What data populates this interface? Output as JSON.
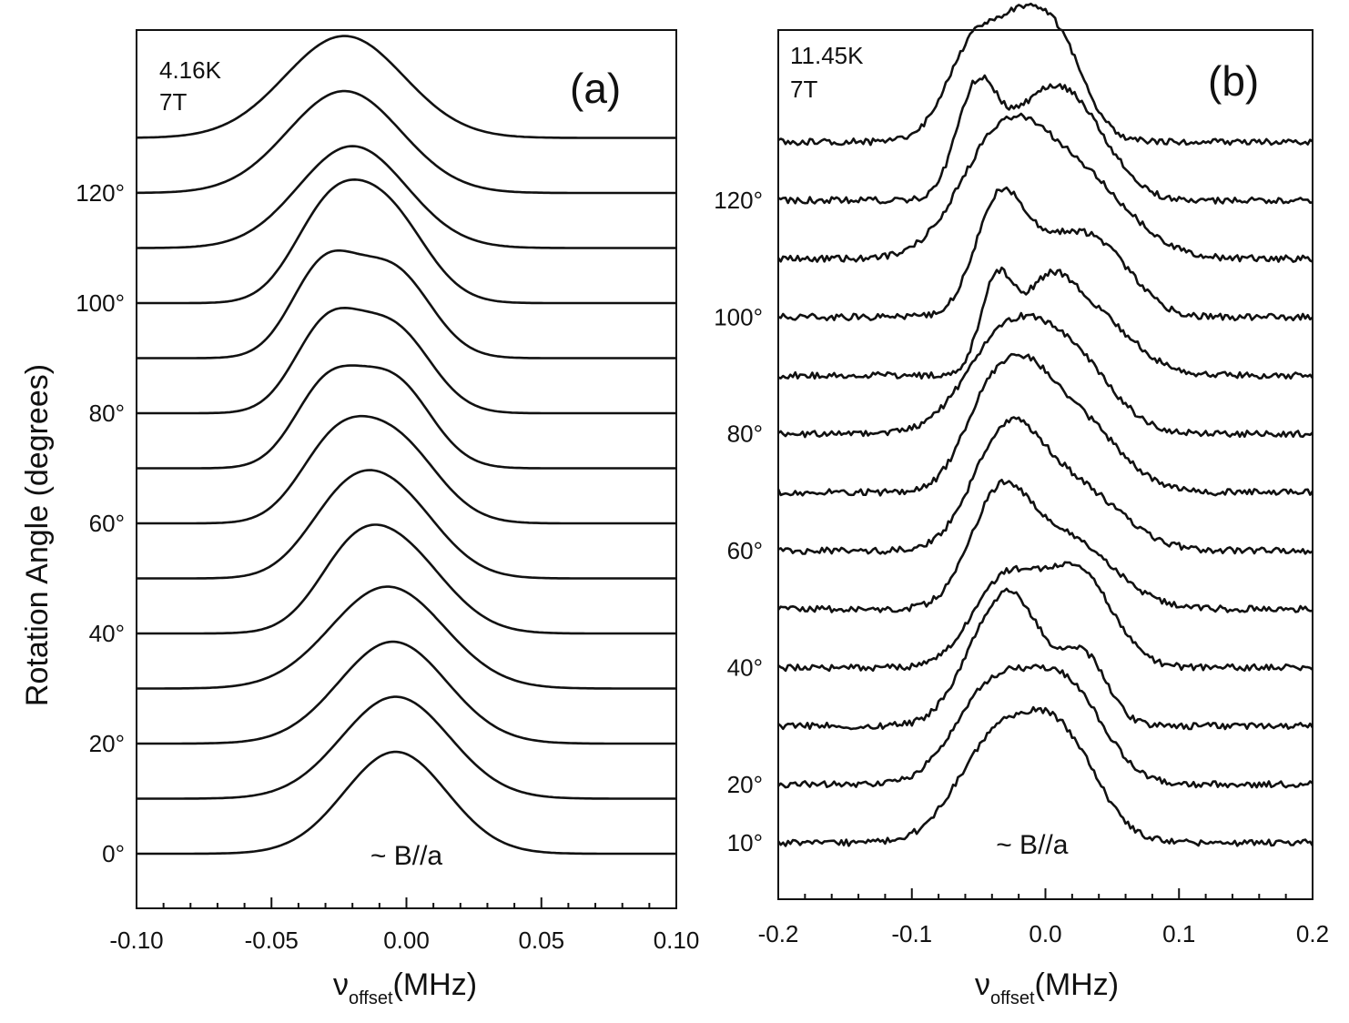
{
  "y_axis_title": "Rotation Angle (degrees)",
  "chart_data": [
    {
      "panel": "(a)",
      "type": "line",
      "conditions": [
        "4.16K",
        "7T"
      ],
      "xlabel": {
        "symbol": "ν",
        "subscript": "offset",
        "unit": "(MHz)"
      },
      "xlim": [
        -0.1,
        0.1
      ],
      "x_ticks": [
        -0.1,
        -0.05,
        0.0,
        0.05,
        0.1
      ],
      "x_tick_labels": [
        "-0.10",
        "-0.05",
        "0.00",
        "0.05",
        "0.10"
      ],
      "ylim": [
        -10,
        145
      ],
      "angle_labels": [
        {
          "angle": 0,
          "text": "0°"
        },
        {
          "angle": 20,
          "text": "20°"
        },
        {
          "angle": 40,
          "text": "40°"
        },
        {
          "angle": 60,
          "text": "60°"
        },
        {
          "angle": 80,
          "text": "80°"
        },
        {
          "angle": 100,
          "text": "100°"
        },
        {
          "angle": 120,
          "text": "120°"
        }
      ],
      "annotation": {
        "text": "~ B//a",
        "x": 0.0,
        "angle": 0
      },
      "peak_height_deg": 18.5,
      "series": [
        {
          "name": "0°",
          "baseline": 0,
          "peaks": [
            {
              "center": -0.004,
              "width": 0.019,
              "amp": 1.0
            }
          ]
        },
        {
          "name": "10°",
          "baseline": 10,
          "peaks": [
            {
              "center": -0.004,
              "width": 0.02,
              "amp": 1.0
            }
          ]
        },
        {
          "name": "20°",
          "baseline": 20,
          "peaks": [
            {
              "center": -0.005,
              "width": 0.02,
              "amp": 1.0
            }
          ]
        },
        {
          "name": "30°",
          "baseline": 30,
          "peaks": [
            {
              "center": -0.007,
              "width": 0.021,
              "amp": 1.0
            }
          ]
        },
        {
          "name": "40°",
          "baseline": 40,
          "peaks": [
            {
              "center": -0.004,
              "width": 0.018,
              "amp": 0.85
            },
            {
              "center": -0.022,
              "width": 0.013,
              "amp": 0.4
            }
          ]
        },
        {
          "name": "50°",
          "baseline": 50,
          "peaks": [
            {
              "center": -0.005,
              "width": 0.017,
              "amp": 0.8
            },
            {
              "center": -0.025,
              "width": 0.014,
              "amp": 0.5
            }
          ]
        },
        {
          "name": "60°",
          "baseline": 60,
          "peaks": [
            {
              "center": -0.005,
              "width": 0.016,
              "amp": 0.82
            },
            {
              "center": -0.028,
              "width": 0.013,
              "amp": 0.62
            }
          ]
        },
        {
          "name": "70°",
          "baseline": 70,
          "peaks": [
            {
              "center": -0.005,
              "width": 0.014,
              "amp": 0.85
            },
            {
              "center": -0.03,
              "width": 0.012,
              "amp": 0.75
            }
          ]
        },
        {
          "name": "80°",
          "baseline": 80,
          "peaks": [
            {
              "center": -0.005,
              "width": 0.014,
              "amp": 0.82
            },
            {
              "center": -0.03,
              "width": 0.012,
              "amp": 0.8
            }
          ]
        },
        {
          "name": "90°",
          "baseline": 90,
          "peaks": [
            {
              "center": -0.005,
              "width": 0.014,
              "amp": 0.85
            },
            {
              "center": -0.031,
              "width": 0.012,
              "amp": 0.85
            }
          ]
        },
        {
          "name": "100°",
          "baseline": 100,
          "peaks": [
            {
              "center": -0.008,
              "width": 0.015,
              "amp": 0.9
            },
            {
              "center": -0.03,
              "width": 0.013,
              "amp": 0.75
            }
          ]
        },
        {
          "name": "110°",
          "baseline": 110,
          "peaks": [
            {
              "center": -0.02,
              "width": 0.02,
              "amp": 1.0
            }
          ]
        },
        {
          "name": "120°",
          "baseline": 120,
          "peaks": [
            {
              "center": -0.023,
              "width": 0.021,
              "amp": 1.0
            }
          ]
        },
        {
          "name": "130°",
          "baseline": 130,
          "peaks": [
            {
              "center": -0.023,
              "width": 0.022,
              "amp": 1.0
            }
          ]
        }
      ]
    },
    {
      "panel": "(b)",
      "type": "line",
      "conditions": [
        "11.45K",
        "7T"
      ],
      "xlabel": {
        "symbol": "ν",
        "subscript": "offset",
        "unit": "(MHz)"
      },
      "xlim": [
        -0.2,
        0.2
      ],
      "x_ticks": [
        -0.2,
        -0.1,
        0.0,
        0.1,
        0.2
      ],
      "x_tick_labels": [
        "-0.2",
        "-0.1",
        "0.0",
        "0.1",
        "0.2"
      ],
      "ylim": [
        0,
        148
      ],
      "angle_labels": [
        {
          "angle": 10,
          "text": "10°"
        },
        {
          "angle": 20,
          "text": "20°"
        },
        {
          "angle": 40,
          "text": "40°"
        },
        {
          "angle": 60,
          "text": "60°"
        },
        {
          "angle": 80,
          "text": "80°"
        },
        {
          "angle": 100,
          "text": "100°"
        },
        {
          "angle": 120,
          "text": "120°"
        }
      ],
      "annotation": {
        "text": "~ B//a",
        "x": -0.01,
        "angle": 10
      },
      "peak_height_deg": 20,
      "noise_amp": 0.045,
      "series": [
        {
          "name": "10°",
          "baseline": 10,
          "peaks": [
            {
              "center": -0.04,
              "width": 0.028,
              "amp": 0.78
            },
            {
              "center": 0.01,
              "width": 0.028,
              "amp": 0.9
            }
          ]
        },
        {
          "name": "20°",
          "baseline": 20,
          "peaks": [
            {
              "center": -0.04,
              "width": 0.028,
              "amp": 0.8
            },
            {
              "center": 0.015,
              "width": 0.028,
              "amp": 0.82
            }
          ]
        },
        {
          "name": "30°",
          "baseline": 30,
          "peaks": [
            {
              "center": -0.045,
              "width": 0.022,
              "amp": 0.65
            },
            {
              "center": -0.018,
              "width": 0.02,
              "amp": 0.75
            },
            {
              "center": 0.028,
              "width": 0.018,
              "amp": 0.6
            }
          ]
        },
        {
          "name": "40°",
          "baseline": 40,
          "peaks": [
            {
              "center": -0.03,
              "width": 0.025,
              "amp": 0.75
            },
            {
              "center": 0.025,
              "width": 0.025,
              "amp": 0.8
            }
          ]
        },
        {
          "name": "50°",
          "baseline": 50,
          "peaks": [
            {
              "center": -0.035,
              "width": 0.022,
              "amp": 0.85
            },
            {
              "center": 0.015,
              "width": 0.035,
              "amp": 0.6
            }
          ]
        },
        {
          "name": "60°",
          "baseline": 60,
          "peaks": [
            {
              "center": -0.03,
              "width": 0.025,
              "amp": 0.9
            },
            {
              "center": 0.02,
              "width": 0.035,
              "amp": 0.55
            }
          ]
        },
        {
          "name": "70°",
          "baseline": 70,
          "peaks": [
            {
              "center": -0.045,
              "width": 0.02,
              "amp": 0.6
            },
            {
              "center": -0.015,
              "width": 0.022,
              "amp": 0.72
            },
            {
              "center": 0.025,
              "width": 0.03,
              "amp": 0.6
            }
          ]
        },
        {
          "name": "80°",
          "baseline": 80,
          "peaks": [
            {
              "center": -0.03,
              "width": 0.03,
              "amp": 0.8
            },
            {
              "center": 0.02,
              "width": 0.03,
              "amp": 0.6
            }
          ]
        },
        {
          "name": "90°",
          "baseline": 90,
          "peaks": [
            {
              "center": -0.037,
              "width": 0.012,
              "amp": 0.75
            },
            {
              "center": 0.0,
              "width": 0.02,
              "amp": 0.6
            },
            {
              "center": 0.035,
              "width": 0.03,
              "amp": 0.5
            }
          ]
        },
        {
          "name": "100°",
          "baseline": 100,
          "peaks": [
            {
              "center": -0.035,
              "width": 0.018,
              "amp": 0.85
            },
            {
              "center": 0.005,
              "width": 0.03,
              "amp": 0.55
            },
            {
              "center": 0.045,
              "width": 0.025,
              "amp": 0.4
            }
          ]
        },
        {
          "name": "110°",
          "baseline": 110,
          "peaks": [
            {
              "center": -0.04,
              "width": 0.03,
              "amp": 0.7
            },
            {
              "center": -0.015,
              "width": 0.03,
              "amp": 0.45
            },
            {
              "center": 0.03,
              "width": 0.035,
              "amp": 0.6
            }
          ]
        },
        {
          "name": "120°",
          "baseline": 120,
          "peaks": [
            {
              "center": -0.052,
              "width": 0.015,
              "amp": 0.85
            },
            {
              "center": -0.005,
              "width": 0.028,
              "amp": 0.75
            },
            {
              "center": 0.03,
              "width": 0.025,
              "amp": 0.45
            }
          ]
        },
        {
          "name": "130°",
          "baseline": 130,
          "peaks": [
            {
              "center": -0.05,
              "width": 0.022,
              "amp": 0.9
            },
            {
              "center": -0.02,
              "width": 0.015,
              "amp": 0.3
            },
            {
              "center": 0.005,
              "width": 0.022,
              "amp": 0.95
            }
          ]
        }
      ]
    }
  ]
}
